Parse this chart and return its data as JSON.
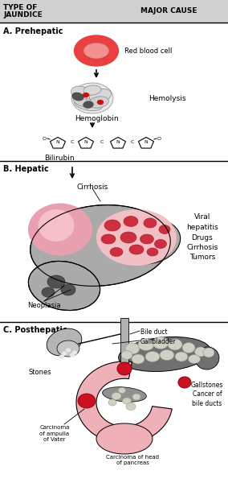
{
  "title_left": "TYPE OF\nJAUNDICE",
  "title_right": "MAJOR CAUSE",
  "section_A_label": "A. Prehepatic",
  "section_B_label": "B. Hepatic",
  "section_C_label": "C. Posthepatic",
  "rbc_label": "Red blood cell",
  "hemolysis_label": "Hemolysis",
  "hemoglobin_label": "Hemoglobin",
  "bilirubin_label": "Bilirubin",
  "cirrhosis_label": "Cirrhosis",
  "neoplasia_label": "Neoplasia",
  "hepatic_causes": "Viral\nhepatitis\nDrugs\nCirrhosis\nTumors",
  "bile_duct_label": "Bile duct",
  "gallbladder_label": "Gallbladder",
  "stones_label": "Stones",
  "gallstones_label": "Gallstones\nCancer of\nbile ducts",
  "carcinoma_ampulla_label": "Carcinoma\nof ampulla\nof Vater",
  "carcinoma_head_label": "Carcinoma of head\nof pancreas",
  "bg_color": "#ffffff",
  "rbc_color": "#e84040",
  "rbc_inner_color": "#f09090",
  "liver_gray": "#aaaaaa",
  "liver_pink": "#e8a0a8",
  "cirrhosis_red": "#cc3040",
  "neo_pink": "#e8a0b0",
  "neo_dark": "#606060",
  "panc_pink": "#f0b0b8",
  "panc_dark": "#808080",
  "div1": 0.668,
  "div2": 0.335,
  "fig_width": 2.84,
  "fig_height": 6.0,
  "dpi": 100
}
